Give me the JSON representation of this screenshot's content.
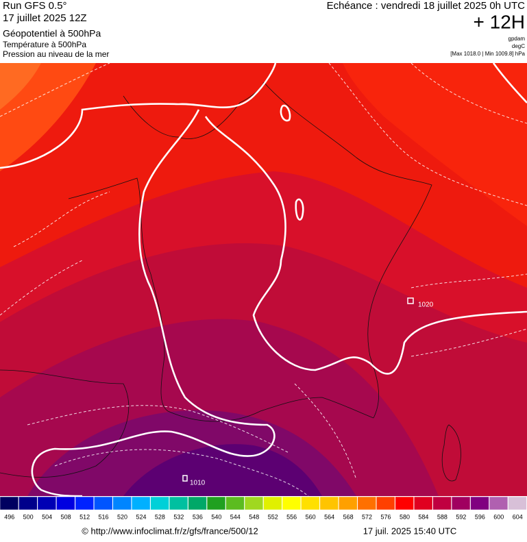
{
  "header": {
    "left": [
      "Run GFS 0.5°",
      "17 juillet 2025 12Z",
      "Géopotentiel à 500hPa",
      "Température à 500hPa",
      "Pression au niveau de la mer"
    ],
    "validity": "Echéance : vendredi 18 juillet 2025 0h UTC",
    "lead": "+ 12H",
    "units": [
      "gpdam",
      "degC"
    ],
    "pressure_range": "[Max 1018.0 | Min 1009.8] hPa"
  },
  "map": {
    "pressure_labels": [
      "1020",
      "1010"
    ]
  },
  "scale": {
    "labels": [
      496,
      500,
      504,
      508,
      512,
      516,
      520,
      524,
      528,
      532,
      536,
      540,
      544,
      548,
      552,
      556,
      560,
      564,
      568,
      572,
      576,
      580,
      584,
      588,
      592,
      596,
      600,
      604
    ],
    "colors": [
      "#000060",
      "#00008b",
      "#0000b4",
      "#0000e0",
      "#0022ff",
      "#0055ff",
      "#0085ff",
      "#00b0ff",
      "#00d0d8",
      "#00c0a0",
      "#00a868",
      "#20a020",
      "#5cbc20",
      "#a0d820",
      "#e0f000",
      "#ffff00",
      "#ffe000",
      "#ffc400",
      "#ffa000",
      "#ff7000",
      "#ff4000",
      "#ff0000",
      "#e00020",
      "#c00040",
      "#a00060",
      "#800080",
      "#b060b0",
      "#d8c0d8"
    ]
  },
  "footer": {
    "url": "© http://www.infoclimat.fr/z/gfs/france/500/12",
    "generated": "17 juil. 2025 15:40 UTC"
  }
}
